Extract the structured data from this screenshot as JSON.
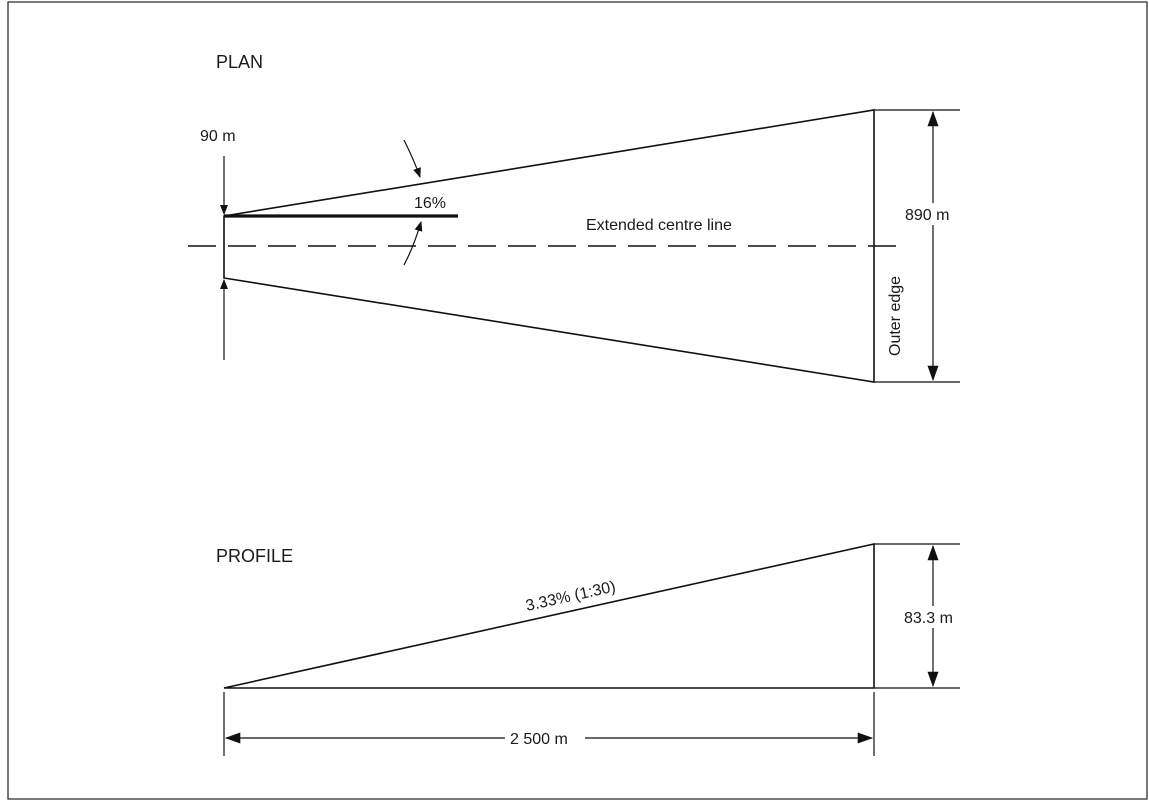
{
  "plan": {
    "heading": "PLAN",
    "inner_width_label": "90 m",
    "divergence_label": "16%",
    "centre_line_label": "Extended centre line",
    "outer_width_label": "890 m",
    "outer_edge_label": "Outer edge"
  },
  "profile": {
    "heading": "PROFILE",
    "slope_label": "3.33% (1:30)",
    "height_label": "83.3 m",
    "length_label": "2 500 m"
  }
}
